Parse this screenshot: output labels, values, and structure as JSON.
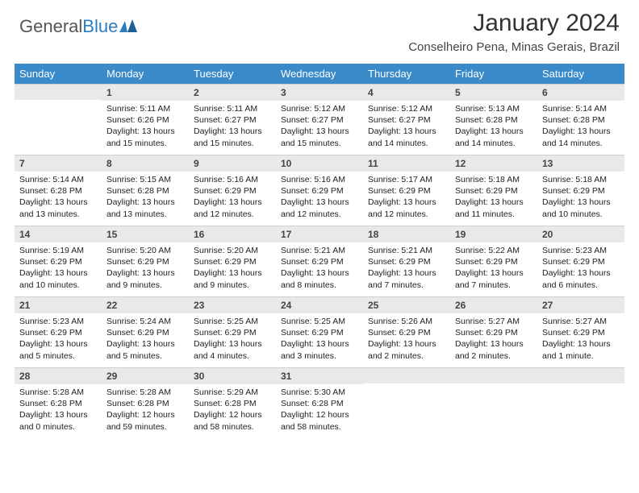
{
  "logo": {
    "text1": "General",
    "text2": "Blue"
  },
  "header": {
    "month_year": "January 2024",
    "location": "Conselheiro Pena, Minas Gerais, Brazil"
  },
  "colors": {
    "header_bg": "#3a8ac9",
    "header_text": "#ffffff",
    "daynum_bg": "#e9e9e9",
    "daynum_text": "#444444",
    "body_text": "#222222",
    "logo_gray": "#555555",
    "logo_blue": "#2c7dbf"
  },
  "day_names": [
    "Sunday",
    "Monday",
    "Tuesday",
    "Wednesday",
    "Thursday",
    "Friday",
    "Saturday"
  ],
  "weeks": [
    [
      null,
      {
        "n": "1",
        "sr": "5:11 AM",
        "ss": "6:26 PM",
        "d1": "13 hours",
        "d2": "and 15 minutes."
      },
      {
        "n": "2",
        "sr": "5:11 AM",
        "ss": "6:27 PM",
        "d1": "13 hours",
        "d2": "and 15 minutes."
      },
      {
        "n": "3",
        "sr": "5:12 AM",
        "ss": "6:27 PM",
        "d1": "13 hours",
        "d2": "and 15 minutes."
      },
      {
        "n": "4",
        "sr": "5:12 AM",
        "ss": "6:27 PM",
        "d1": "13 hours",
        "d2": "and 14 minutes."
      },
      {
        "n": "5",
        "sr": "5:13 AM",
        "ss": "6:28 PM",
        "d1": "13 hours",
        "d2": "and 14 minutes."
      },
      {
        "n": "6",
        "sr": "5:14 AM",
        "ss": "6:28 PM",
        "d1": "13 hours",
        "d2": "and 14 minutes."
      }
    ],
    [
      {
        "n": "7",
        "sr": "5:14 AM",
        "ss": "6:28 PM",
        "d1": "13 hours",
        "d2": "and 13 minutes."
      },
      {
        "n": "8",
        "sr": "5:15 AM",
        "ss": "6:28 PM",
        "d1": "13 hours",
        "d2": "and 13 minutes."
      },
      {
        "n": "9",
        "sr": "5:16 AM",
        "ss": "6:29 PM",
        "d1": "13 hours",
        "d2": "and 12 minutes."
      },
      {
        "n": "10",
        "sr": "5:16 AM",
        "ss": "6:29 PM",
        "d1": "13 hours",
        "d2": "and 12 minutes."
      },
      {
        "n": "11",
        "sr": "5:17 AM",
        "ss": "6:29 PM",
        "d1": "13 hours",
        "d2": "and 12 minutes."
      },
      {
        "n": "12",
        "sr": "5:18 AM",
        "ss": "6:29 PM",
        "d1": "13 hours",
        "d2": "and 11 minutes."
      },
      {
        "n": "13",
        "sr": "5:18 AM",
        "ss": "6:29 PM",
        "d1": "13 hours",
        "d2": "and 10 minutes."
      }
    ],
    [
      {
        "n": "14",
        "sr": "5:19 AM",
        "ss": "6:29 PM",
        "d1": "13 hours",
        "d2": "and 10 minutes."
      },
      {
        "n": "15",
        "sr": "5:20 AM",
        "ss": "6:29 PM",
        "d1": "13 hours",
        "d2": "and 9 minutes."
      },
      {
        "n": "16",
        "sr": "5:20 AM",
        "ss": "6:29 PM",
        "d1": "13 hours",
        "d2": "and 9 minutes."
      },
      {
        "n": "17",
        "sr": "5:21 AM",
        "ss": "6:29 PM",
        "d1": "13 hours",
        "d2": "and 8 minutes."
      },
      {
        "n": "18",
        "sr": "5:21 AM",
        "ss": "6:29 PM",
        "d1": "13 hours",
        "d2": "and 7 minutes."
      },
      {
        "n": "19",
        "sr": "5:22 AM",
        "ss": "6:29 PM",
        "d1": "13 hours",
        "d2": "and 7 minutes."
      },
      {
        "n": "20",
        "sr": "5:23 AM",
        "ss": "6:29 PM",
        "d1": "13 hours",
        "d2": "and 6 minutes."
      }
    ],
    [
      {
        "n": "21",
        "sr": "5:23 AM",
        "ss": "6:29 PM",
        "d1": "13 hours",
        "d2": "and 5 minutes."
      },
      {
        "n": "22",
        "sr": "5:24 AM",
        "ss": "6:29 PM",
        "d1": "13 hours",
        "d2": "and 5 minutes."
      },
      {
        "n": "23",
        "sr": "5:25 AM",
        "ss": "6:29 PM",
        "d1": "13 hours",
        "d2": "and 4 minutes."
      },
      {
        "n": "24",
        "sr": "5:25 AM",
        "ss": "6:29 PM",
        "d1": "13 hours",
        "d2": "and 3 minutes."
      },
      {
        "n": "25",
        "sr": "5:26 AM",
        "ss": "6:29 PM",
        "d1": "13 hours",
        "d2": "and 2 minutes."
      },
      {
        "n": "26",
        "sr": "5:27 AM",
        "ss": "6:29 PM",
        "d1": "13 hours",
        "d2": "and 2 minutes."
      },
      {
        "n": "27",
        "sr": "5:27 AM",
        "ss": "6:29 PM",
        "d1": "13 hours",
        "d2": "and 1 minute."
      }
    ],
    [
      {
        "n": "28",
        "sr": "5:28 AM",
        "ss": "6:28 PM",
        "d1": "13 hours",
        "d2": "and 0 minutes."
      },
      {
        "n": "29",
        "sr": "5:28 AM",
        "ss": "6:28 PM",
        "d1": "12 hours",
        "d2": "and 59 minutes."
      },
      {
        "n": "30",
        "sr": "5:29 AM",
        "ss": "6:28 PM",
        "d1": "12 hours",
        "d2": "and 58 minutes."
      },
      {
        "n": "31",
        "sr": "5:30 AM",
        "ss": "6:28 PM",
        "d1": "12 hours",
        "d2": "and 58 minutes."
      },
      null,
      null,
      null
    ]
  ],
  "labels": {
    "sunrise": "Sunrise:",
    "sunset": "Sunset:",
    "daylight": "Daylight:"
  }
}
